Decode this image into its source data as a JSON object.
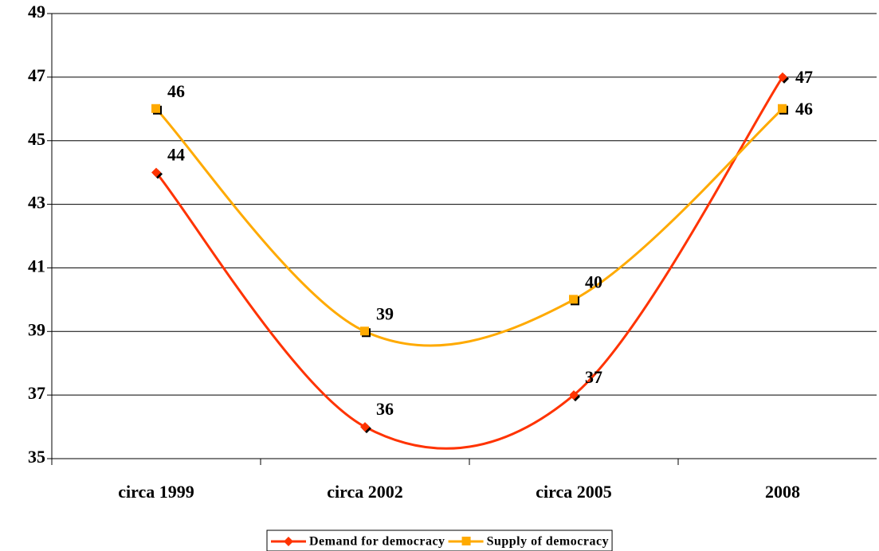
{
  "chart_data": {
    "type": "line",
    "categories": [
      "circa 1999",
      "circa 2002",
      "circa 2005",
      "2008"
    ],
    "series": [
      {
        "name": "Demand for democracy",
        "color": "#ff3300",
        "marker": "diamond",
        "values": [
          44,
          36,
          37,
          47
        ]
      },
      {
        "name": "Supply of democracy",
        "color": "#ffaa00",
        "marker": "square",
        "values": [
          46,
          39,
          40,
          46
        ]
      }
    ],
    "ylim": [
      35,
      49
    ],
    "yticks": [
      35,
      37,
      39,
      41,
      43,
      45,
      47,
      49
    ],
    "grid": true,
    "smooth": true,
    "legend": "bottom"
  }
}
